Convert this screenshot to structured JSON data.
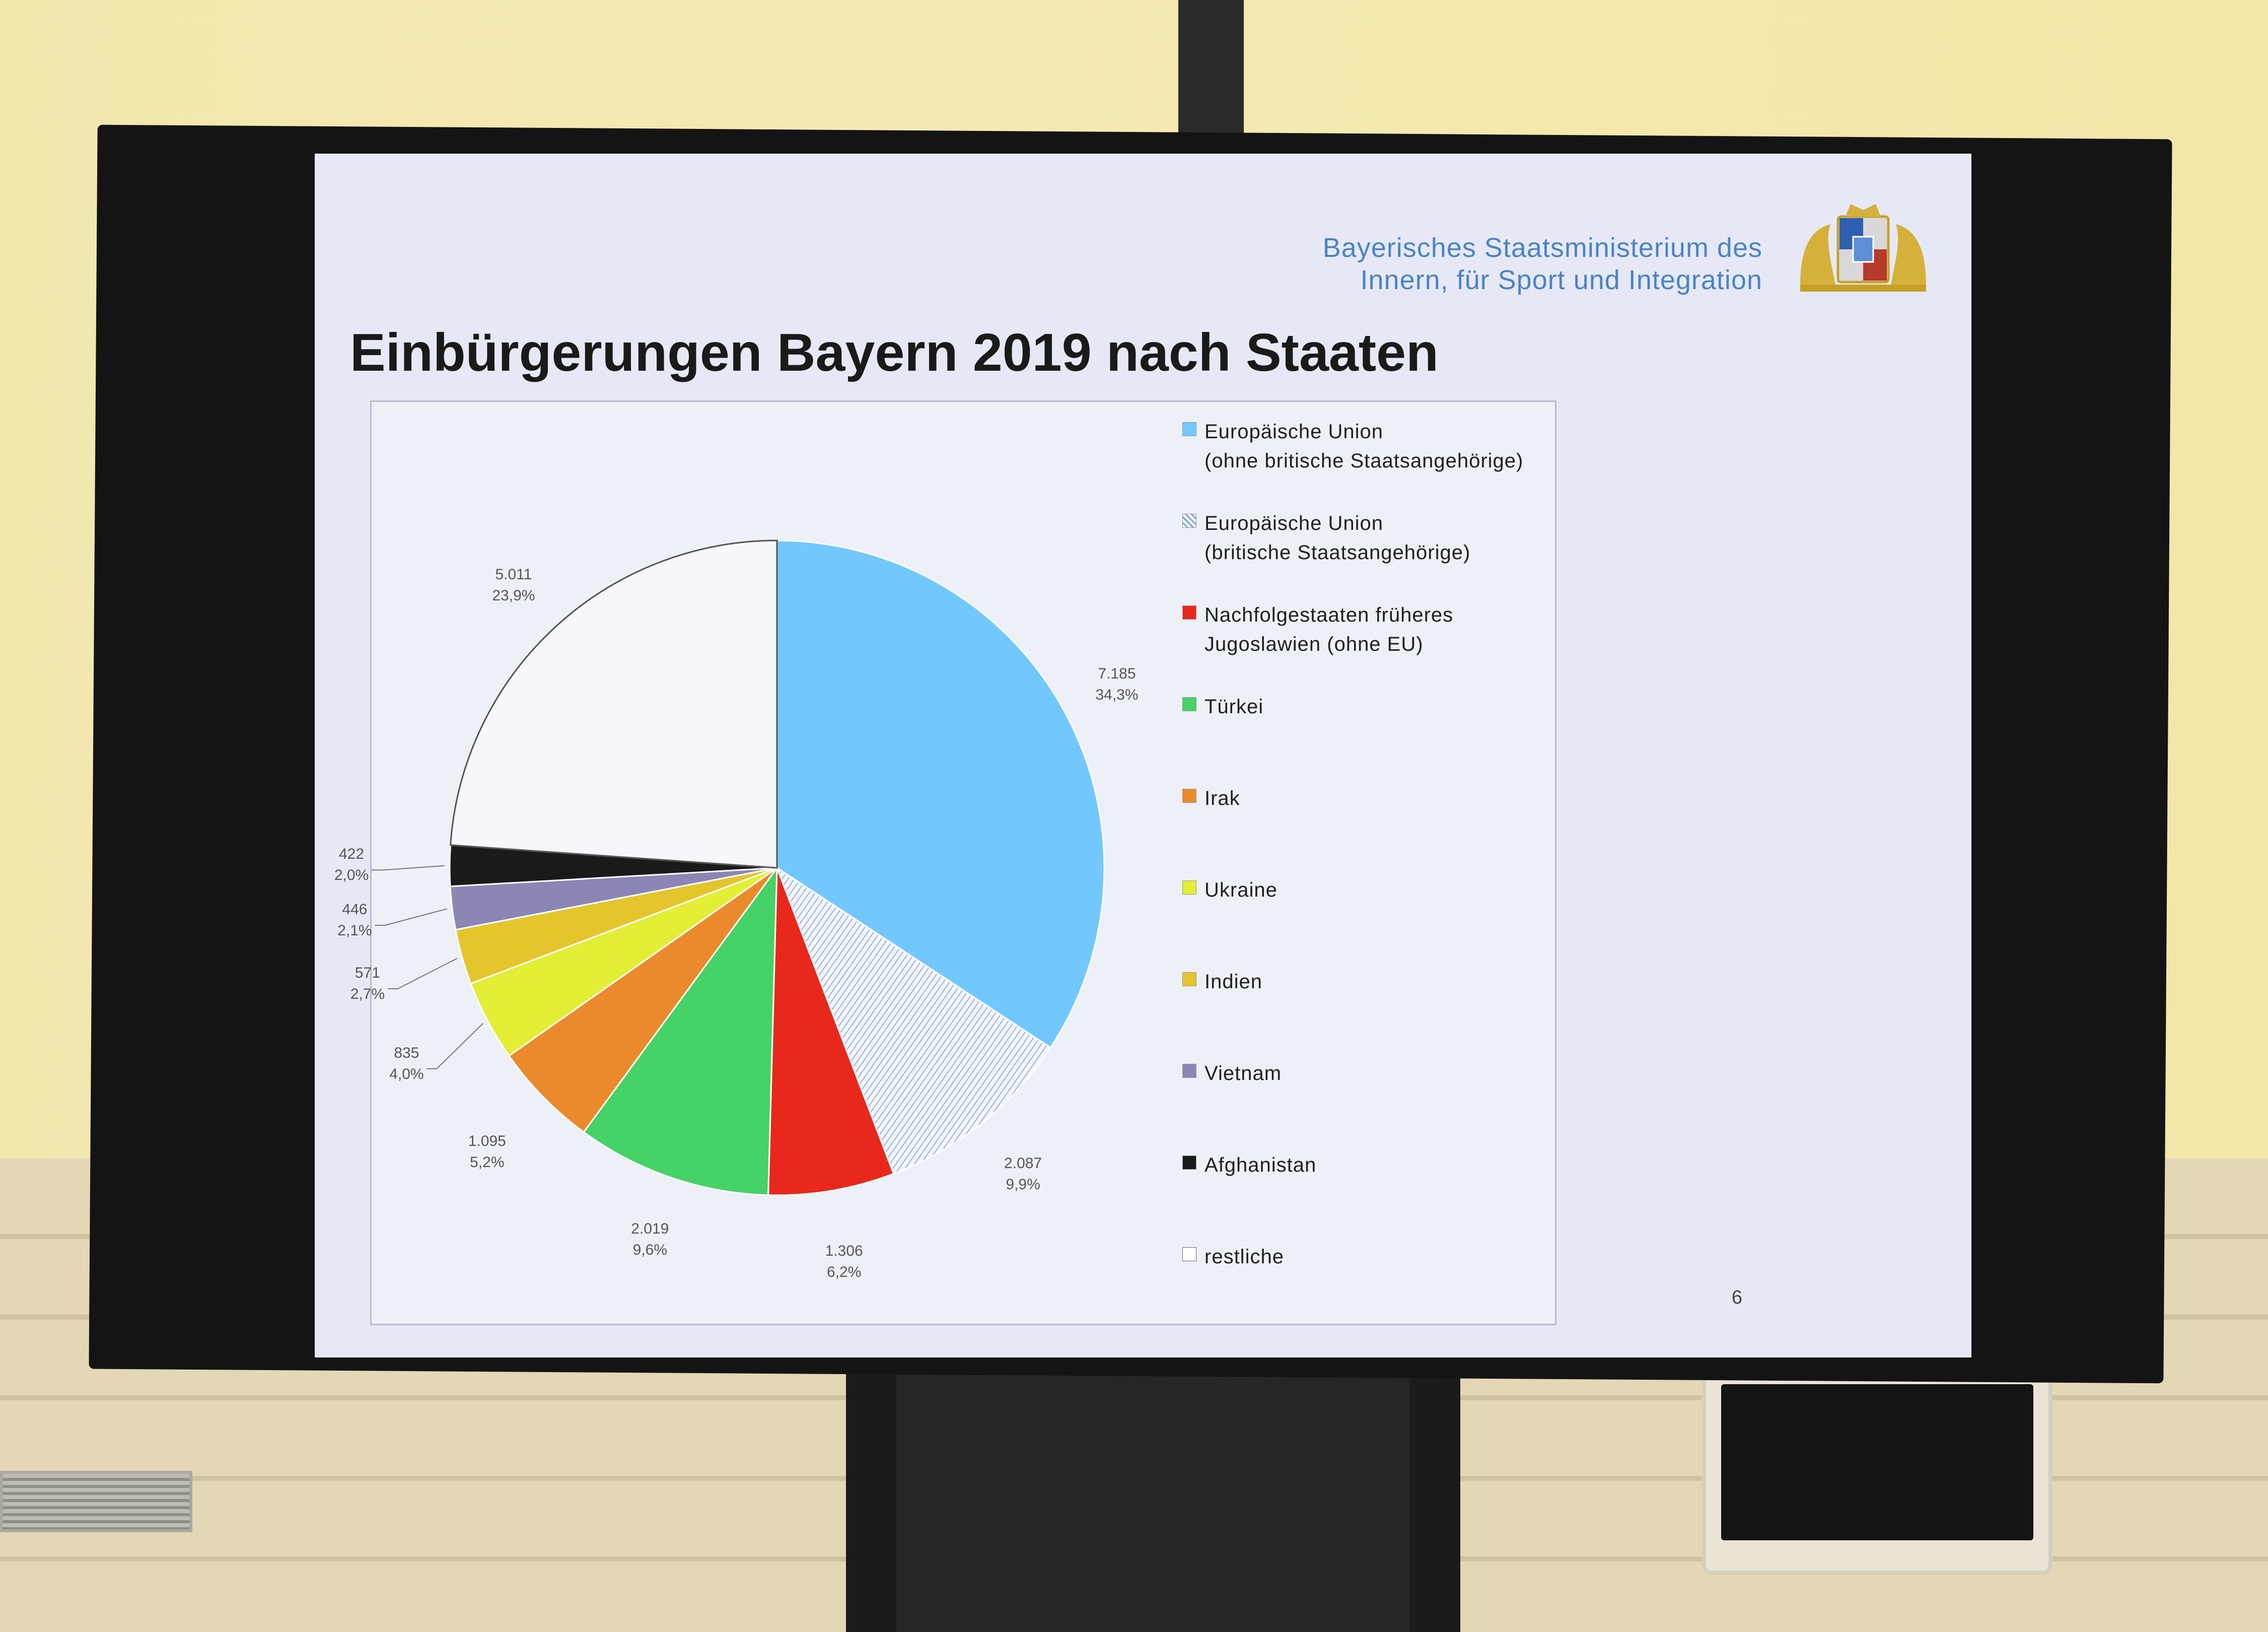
{
  "header": {
    "ministry_line1": "Bayerisches Staatsministerium des",
    "ministry_line2": "Innern, für Sport und Integration"
  },
  "slide": {
    "title": "Einbürgerungen Bayern 2019 nach Staaten",
    "page_number": "6"
  },
  "chart_data": {
    "type": "pie",
    "title": "Einbürgerungen Bayern 2019 nach Staaten",
    "legend_position": "right",
    "slices": [
      {
        "name": "Europäische Union (ohne britische Staatsangehörige)",
        "name_line1": "Europäische Union",
        "name_line2": "(ohne britische Staatsangehörige)",
        "value": 7185,
        "value_label": "7.185",
        "percent_label": "34,3%",
        "color": "#72c8fd",
        "pattern": "solid"
      },
      {
        "name": "Europäische Union (britische Staatsangehörige)",
        "name_line1": "Europäische Union",
        "name_line2": "(britische Staatsangehörige)",
        "value": 2087,
        "value_label": "2.087",
        "percent_label": "9,9%",
        "color": "#8da8d6",
        "pattern": "hatched"
      },
      {
        "name": "Nachfolgestaaten früheres Jugoslawien (ohne EU)",
        "name_line1": "Nachfolgestaaten früheres",
        "name_line2": "Jugoslawien (ohne EU)",
        "value": 1306,
        "value_label": "1.306",
        "percent_label": "6,2%",
        "color": "#e8281c",
        "pattern": "solid"
      },
      {
        "name": "Türkei",
        "name_line1": "Türkei",
        "name_line2": "",
        "value": 2019,
        "value_label": "2.019",
        "percent_label": "9,6%",
        "color": "#45d266",
        "pattern": "solid"
      },
      {
        "name": "Irak",
        "name_line1": "Irak",
        "name_line2": "",
        "value": 1095,
        "value_label": "1.095",
        "percent_label": "5,2%",
        "color": "#ea8a2d",
        "pattern": "solid"
      },
      {
        "name": "Ukraine",
        "name_line1": "Ukraine",
        "name_line2": "",
        "value": 835,
        "value_label": "835",
        "percent_label": "4,0%",
        "color": "#e3ee35",
        "pattern": "solid"
      },
      {
        "name": "Indien",
        "name_line1": "Indien",
        "name_line2": "",
        "value": 571,
        "value_label": "571",
        "percent_label": "2,7%",
        "color": "#e4c52c",
        "pattern": "solid"
      },
      {
        "name": "Vietnam",
        "name_line1": "Vietnam",
        "name_line2": "",
        "value": 446,
        "value_label": "446",
        "percent_label": "2,1%",
        "color": "#8c86b5",
        "pattern": "solid"
      },
      {
        "name": "Afghanistan",
        "name_line1": "Afghanistan",
        "name_line2": "",
        "value": 422,
        "value_label": "422",
        "percent_label": "2,0%",
        "color": "#1a1a1a",
        "pattern": "solid"
      },
      {
        "name": "restliche",
        "name_line1": "restliche",
        "name_line2": "",
        "value": 5011,
        "value_label": "5.011",
        "percent_label": "23,9%",
        "color": "#f7f7fb",
        "pattern": "solid"
      }
    ]
  }
}
